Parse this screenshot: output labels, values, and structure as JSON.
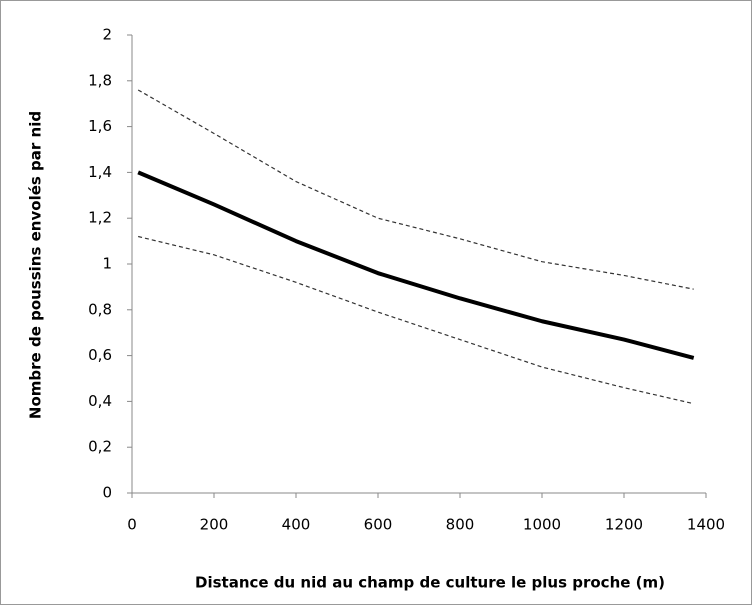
{
  "chart_data": {
    "type": "line",
    "xlabel": "Distance  du nid au champ  de culture le plus proche (m)",
    "ylabel": "Nombre de poussins envolés par nid",
    "x": [
      15,
      200,
      400,
      600,
      800,
      1000,
      1200,
      1370
    ],
    "series": [
      {
        "color": "#000000",
        "dashed": false,
        "values": [
          1.4,
          1.26,
          1.1,
          0.96,
          0.85,
          0.75,
          0.67,
          0.59
        ]
      },
      {
        "color": "#333333",
        "dashed": true,
        "values": [
          1.76,
          1.57,
          1.36,
          1.2,
          1.11,
          1.01,
          0.95,
          0.89
        ]
      },
      {
        "color": "#333333",
        "dashed": true,
        "values": [
          1.12,
          1.04,
          0.92,
          0.79,
          0.67,
          0.55,
          0.46,
          0.39
        ]
      }
    ],
    "xlim": [
      0,
      1400
    ],
    "xticks": [
      0,
      200,
      400,
      600,
      800,
      1000,
      1200,
      1400
    ],
    "ylim": [
      0,
      2
    ],
    "yticks": [
      0,
      {
        "value": 0.2,
        "label": "0,2"
      },
      {
        "value": 0.4,
        "label": "0,4"
      },
      {
        "value": 0.6,
        "label": "0,6"
      },
      {
        "value": 0.8,
        "label": "0,8"
      },
      1,
      {
        "value": 1.2,
        "label": "1,2"
      },
      {
        "value": 1.4,
        "label": "1,4"
      },
      {
        "value": 1.6,
        "label": "1,6"
      },
      {
        "value": 1.8,
        "label": "1,8"
      },
      2
    ],
    "grid": false
  }
}
